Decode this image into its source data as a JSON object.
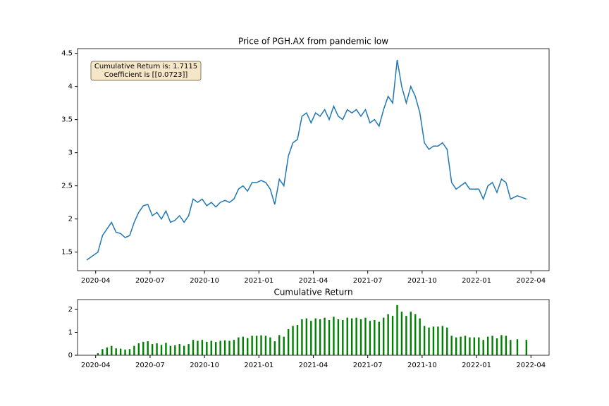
{
  "chart_data": [
    {
      "type": "line",
      "title": "Price of PGH.AX from pandemic low",
      "annotation": [
        "Cumulative Return is: 1.7115",
        "Coefficient is [[0.0723]]"
      ],
      "x": [
        "2020-03",
        "2020-04",
        "2020-04",
        "2020-04",
        "2020-04",
        "2020-05",
        "2020-05",
        "2020-05",
        "2020-05",
        "2020-06",
        "2020-06",
        "2020-06",
        "2020-06",
        "2020-07",
        "2020-07",
        "2020-07",
        "2020-07",
        "2020-08",
        "2020-08",
        "2020-08",
        "2020-08",
        "2020-09",
        "2020-09",
        "2020-09",
        "2020-09",
        "2020-10",
        "2020-10",
        "2020-10",
        "2020-10",
        "2020-11",
        "2020-11",
        "2020-11",
        "2020-11",
        "2020-12",
        "2020-12",
        "2020-12",
        "2020-12",
        "2021-01",
        "2021-01",
        "2021-01",
        "2021-01",
        "2021-02",
        "2021-02",
        "2021-02",
        "2021-02",
        "2021-03",
        "2021-03",
        "2021-03",
        "2021-03",
        "2021-04",
        "2021-04",
        "2021-04",
        "2021-04",
        "2021-05",
        "2021-05",
        "2021-05",
        "2021-05",
        "2021-06",
        "2021-06",
        "2021-06",
        "2021-06",
        "2021-07",
        "2021-07",
        "2021-07",
        "2021-07",
        "2021-08",
        "2021-08",
        "2021-08",
        "2021-08",
        "2021-09",
        "2021-09",
        "2021-09",
        "2021-09",
        "2021-10",
        "2021-10",
        "2021-10",
        "2021-10",
        "2021-11",
        "2021-11",
        "2021-11",
        "2021-11",
        "2021-12",
        "2021-12",
        "2021-12",
        "2021-12",
        "2022-01",
        "2022-01",
        "2022-01",
        "2022-01",
        "2022-02",
        "2022-02",
        "2022-02",
        "2022-02",
        "2022-03",
        "2022-03"
      ],
      "series": [
        {
          "color": "#1f77b4",
          "values": [
            1.38,
            1.5,
            1.75,
            1.85,
            1.95,
            1.8,
            1.78,
            1.72,
            1.75,
            1.95,
            2.1,
            2.2,
            2.22,
            2.05,
            2.1,
            2.0,
            2.12,
            1.95,
            1.98,
            2.05,
            1.95,
            2.05,
            2.3,
            2.25,
            2.3,
            2.2,
            2.25,
            2.18,
            2.25,
            2.28,
            2.25,
            2.3,
            2.45,
            2.5,
            2.42,
            2.55,
            2.55,
            2.58,
            2.55,
            2.45,
            2.22,
            2.6,
            2.5,
            2.95,
            3.15,
            3.2,
            3.55,
            3.6,
            3.45,
            3.6,
            3.55,
            3.65,
            3.5,
            3.7,
            3.55,
            3.5,
            3.65,
            3.6,
            3.65,
            3.55,
            3.65,
            3.45,
            3.5,
            3.4,
            3.65,
            3.85,
            3.75,
            4.4,
            4.0,
            3.75,
            4.0,
            3.85,
            3.6,
            3.15,
            3.05,
            3.1,
            3.1,
            3.15,
            3.05,
            2.55,
            2.45,
            2.5,
            2.55,
            2.45,
            2.45,
            2.45,
            2.3,
            2.5,
            2.55,
            2.4,
            2.6,
            2.55,
            2.3,
            2.35,
            2.3
          ]
        }
      ],
      "xlim": [
        "2020-03",
        "2022-05"
      ],
      "xticks": [
        "2020-04",
        "2020-07",
        "2020-10",
        "2021-01",
        "2021-04",
        "2021-07",
        "2021-10",
        "2022-01",
        "2022-04"
      ],
      "ylim": [
        1.22,
        4.57
      ],
      "yticks": [
        1.5,
        2.0,
        2.5,
        3.0,
        3.5,
        4.0,
        4.5
      ]
    },
    {
      "type": "bar",
      "title": "Cumulative Return",
      "x": [
        "2020-03",
        "2020-04",
        "2020-04",
        "2020-04",
        "2020-04",
        "2020-05",
        "2020-05",
        "2020-05",
        "2020-05",
        "2020-06",
        "2020-06",
        "2020-06",
        "2020-06",
        "2020-07",
        "2020-07",
        "2020-07",
        "2020-07",
        "2020-08",
        "2020-08",
        "2020-08",
        "2020-08",
        "2020-09",
        "2020-09",
        "2020-09",
        "2020-09",
        "2020-10",
        "2020-10",
        "2020-10",
        "2020-10",
        "2020-11",
        "2020-11",
        "2020-11",
        "2020-11",
        "2020-12",
        "2020-12",
        "2020-12",
        "2020-12",
        "2021-01",
        "2021-01",
        "2021-01",
        "2021-01",
        "2021-02",
        "2021-02",
        "2021-02",
        "2021-02",
        "2021-03",
        "2021-03",
        "2021-03",
        "2021-03",
        "2021-04",
        "2021-04",
        "2021-04",
        "2021-04",
        "2021-05",
        "2021-05",
        "2021-05",
        "2021-05",
        "2021-06",
        "2021-06",
        "2021-06",
        "2021-06",
        "2021-07",
        "2021-07",
        "2021-07",
        "2021-07",
        "2021-08",
        "2021-08",
        "2021-08",
        "2021-08",
        "2021-09",
        "2021-09",
        "2021-09",
        "2021-09",
        "2021-10",
        "2021-10",
        "2021-10",
        "2021-10",
        "2021-11",
        "2021-11",
        "2021-11",
        "2021-11",
        "2021-12",
        "2021-12",
        "2021-12",
        "2021-12",
        "2022-01",
        "2022-01",
        "2022-01",
        "2022-01",
        "2022-02",
        "2022-02",
        "2022-02",
        "2022-02",
        "2022-03",
        "2022-03"
      ],
      "series": [
        {
          "color": "#008000",
          "values": [
            0.0,
            0.09,
            0.27,
            0.34,
            0.41,
            0.3,
            0.29,
            0.25,
            0.27,
            0.41,
            0.52,
            0.59,
            0.61,
            0.49,
            0.52,
            0.45,
            0.54,
            0.41,
            0.43,
            0.49,
            0.41,
            0.49,
            0.67,
            0.63,
            0.67,
            0.59,
            0.63,
            0.58,
            0.63,
            0.65,
            0.63,
            0.67,
            0.78,
            0.81,
            0.75,
            0.85,
            0.85,
            0.87,
            0.85,
            0.78,
            0.61,
            0.88,
            0.81,
            1.14,
            1.28,
            1.32,
            1.57,
            1.61,
            1.5,
            1.61,
            1.57,
            1.64,
            1.54,
            1.68,
            1.57,
            1.54,
            1.64,
            1.61,
            1.64,
            1.57,
            1.64,
            1.5,
            1.54,
            1.46,
            1.64,
            1.79,
            1.72,
            2.19,
            1.9,
            1.72,
            1.9,
            1.79,
            1.61,
            1.28,
            1.21,
            1.25,
            1.25,
            1.28,
            1.21,
            0.85,
            0.78,
            0.81,
            0.85,
            0.78,
            0.78,
            0.78,
            0.67,
            0.81,
            0.85,
            0.74,
            0.88,
            0.85,
            0.67,
            0.7,
            0.67
          ]
        }
      ],
      "xlim": [
        "2020-03",
        "2022-05"
      ],
      "xticks": [
        "2020-04",
        "2020-07",
        "2020-10",
        "2021-01",
        "2021-04",
        "2021-07",
        "2021-10",
        "2022-01",
        "2022-04"
      ],
      "ylim": [
        0,
        2.43
      ],
      "yticks": [
        0,
        1,
        2
      ]
    }
  ]
}
